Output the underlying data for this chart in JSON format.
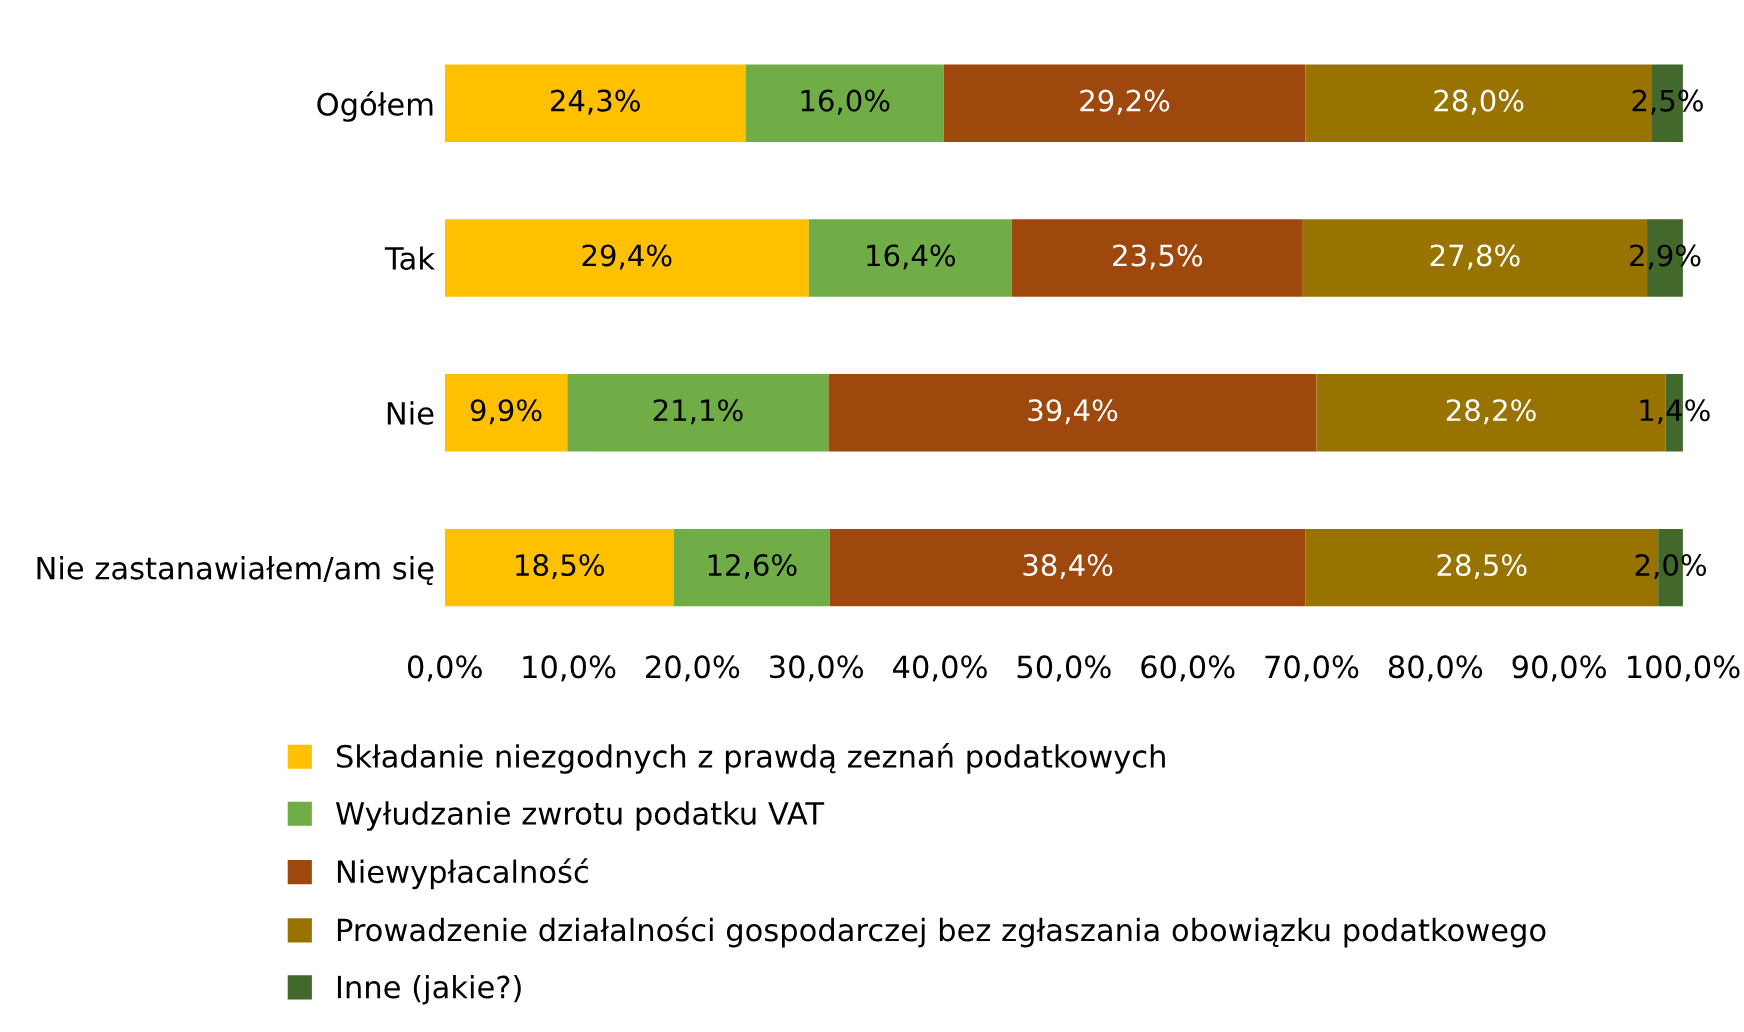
{
  "chart_data": {
    "type": "bar",
    "orientation": "horizontal",
    "stacked": true,
    "legend": "bottom",
    "grid": false,
    "categories": [
      "Ogółem",
      "Tak",
      "Nie",
      "Nie zastanawiałem/am się"
    ],
    "xlim": [
      0,
      100
    ],
    "xticks": [
      {
        "value": 0,
        "label": "0,0%"
      },
      {
        "value": 10,
        "label": "10,0%"
      },
      {
        "value": 20,
        "label": "20,0%"
      },
      {
        "value": 30,
        "label": "30,0%"
      },
      {
        "value": 40,
        "label": "40,0%"
      },
      {
        "value": 50,
        "label": "50,0%"
      },
      {
        "value": 60,
        "label": "60,0%"
      },
      {
        "value": 70,
        "label": "70,0%"
      },
      {
        "value": 80,
        "label": "80,0%"
      },
      {
        "value": 90,
        "label": "90,0%"
      },
      {
        "value": 100,
        "label": "100,0%"
      }
    ],
    "series": [
      {
        "name": "Składanie niezgodnych z prawdą zeznań podatkowych",
        "color": "#ffc000",
        "values": [
          24.3,
          29.4,
          9.9,
          18.5
        ],
        "value_labels": [
          "24,3%",
          "29,4%",
          "9,9%",
          "18,5%"
        ]
      },
      {
        "name": "Wyłudzanie zwrotu podatku VAT",
        "color": "#70ad47",
        "values": [
          16.0,
          16.4,
          21.1,
          12.6
        ],
        "value_labels": [
          "16,0%",
          "16,4%",
          "21,1%",
          "12,6%"
        ]
      },
      {
        "name": "Niewypłacalność",
        "color": "#9e480e",
        "values": [
          29.2,
          23.5,
          39.4,
          38.4
        ],
        "value_labels": [
          "29,2%",
          "23,5%",
          "39,4%",
          "38,4%"
        ]
      },
      {
        "name": "Prowadzenie działalności gospodarczej bez zgłaszania obowiązku podatkowego",
        "color": "#997300",
        "values": [
          28.0,
          27.8,
          28.2,
          28.5
        ],
        "value_labels": [
          "28,0%",
          "27,8%",
          "28,2%",
          "28,5%"
        ]
      },
      {
        "name": "Inne (jakie?)",
        "color": "#43682b",
        "values": [
          2.5,
          2.9,
          1.4,
          2.0
        ],
        "value_labels": [
          "2,5%",
          "2,9%",
          "1,4%",
          "2,0%"
        ]
      }
    ]
  }
}
